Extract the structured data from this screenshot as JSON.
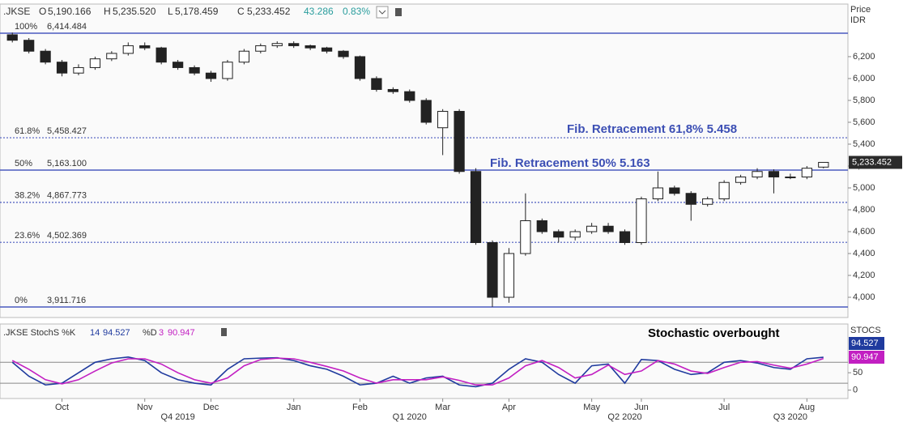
{
  "header": {
    "symbol": ".JKSE",
    "o": "O",
    "open": "5,190.166",
    "h": "H",
    "high": "5,235.520",
    "l": "L",
    "low": "5,178.459",
    "c": "C",
    "close": "5,233.452",
    "change": "43.286",
    "change_pct": "0.83%",
    "axis_title": "Price",
    "currency": "IDR"
  },
  "chart_data": [
    {
      "type": "candlestick",
      "up_color": "#ffffff",
      "down_color": "#222222",
      "categories": [
        null,
        null,
        null,
        "Oct",
        null,
        null,
        null,
        null,
        "Nov",
        null,
        null,
        null,
        "Dec",
        null,
        null,
        null,
        null,
        "Jan",
        null,
        null,
        null,
        "Feb",
        null,
        null,
        null,
        null,
        "Mar",
        null,
        null,
        null,
        "Apr",
        null,
        null,
        null,
        null,
        "May",
        null,
        null,
        "Jun",
        null,
        null,
        null,
        null,
        "Jul",
        null,
        null,
        null,
        null,
        "Aug",
        null
      ],
      "quarters": [
        null,
        null,
        null,
        null,
        null,
        null,
        null,
        null,
        null,
        null,
        "Q4 2019",
        null,
        null,
        null,
        null,
        null,
        null,
        null,
        null,
        null,
        null,
        null,
        null,
        null,
        "Q1 2020",
        null,
        null,
        null,
        null,
        null,
        null,
        null,
        null,
        null,
        null,
        null,
        null,
        "Q2 2020",
        null,
        null,
        null,
        null,
        null,
        null,
        null,
        null,
        null,
        "Q3 2020",
        null,
        null
      ],
      "series": [
        {
          "name": ".JKSE",
          "open": [
            6400,
            6350,
            6250,
            6150,
            6050,
            6100,
            6180,
            6230,
            6300,
            6280,
            6150,
            6100,
            6050,
            6000,
            6150,
            6250,
            6300,
            6320,
            6300,
            6280,
            6250,
            6200,
            6000,
            5900,
            5880,
            5800,
            5550,
            5700,
            5150,
            4500,
            4000,
            4400,
            4700,
            4600,
            4550,
            4600,
            4650,
            4600,
            4500,
            4900,
            5000,
            4950,
            4850,
            4900,
            5050,
            5100,
            5150,
            5100,
            5100,
            5190.166
          ],
          "high": [
            6420,
            6370,
            6270,
            6170,
            6130,
            6200,
            6250,
            6330,
            6330,
            6290,
            6170,
            6120,
            6070,
            6170,
            6270,
            6320,
            6340,
            6340,
            6310,
            6290,
            6260,
            6210,
            6020,
            5920,
            5900,
            5820,
            5720,
            5720,
            5180,
            4520,
            4450,
            4950,
            4720,
            4620,
            4620,
            4680,
            4680,
            4620,
            4920,
            5150,
            5020,
            4970,
            4920,
            5070,
            5120,
            5180,
            5170,
            5130,
            5200,
            5235.52
          ],
          "low": [
            6330,
            6230,
            6130,
            6020,
            6030,
            6080,
            6160,
            6210,
            6260,
            6130,
            6080,
            6030,
            5970,
            5980,
            6130,
            6230,
            6280,
            6280,
            6260,
            6230,
            6180,
            5980,
            5880,
            5860,
            5780,
            5580,
            5300,
            5130,
            4480,
            3911.716,
            3950,
            4380,
            4580,
            4500,
            4520,
            4580,
            4580,
            4480,
            4480,
            4880,
            4930,
            4700,
            4830,
            4880,
            5030,
            5080,
            4950,
            5080,
            5080,
            5178.459
          ],
          "close": [
            6350,
            6250,
            6150,
            6050,
            6100,
            6180,
            6230,
            6300,
            6280,
            6150,
            6100,
            6050,
            6000,
            6150,
            6250,
            6300,
            6320,
            6300,
            6280,
            6250,
            6200,
            6000,
            5900,
            5880,
            5800,
            5600,
            5700,
            5150,
            4500,
            4000,
            4400,
            4700,
            4600,
            4550,
            4600,
            4650,
            4600,
            4500,
            4900,
            5000,
            4950,
            4850,
            4900,
            5050,
            5100,
            5150,
            5100,
            5100,
            5180,
            5233.452
          ]
        }
      ],
      "last_price": {
        "value": 5233.452,
        "label": "5,233.452"
      },
      "ylim": [
        3815,
        6681
      ],
      "yticks": [
        {
          "value": 4000,
          "label": "4,000"
        },
        {
          "value": 4200,
          "label": "4,200"
        },
        {
          "value": 4400,
          "label": "4,400"
        },
        {
          "value": 4600,
          "label": "4,600"
        },
        {
          "value": 4800,
          "label": "4,800"
        },
        {
          "value": 5000,
          "label": "5,000"
        },
        {
          "value": 5200,
          "label": "5,200"
        },
        {
          "value": 5400,
          "label": "5,400"
        },
        {
          "value": 5600,
          "label": "5,600"
        },
        {
          "value": 5800,
          "label": "5,800"
        },
        {
          "value": 6000,
          "label": "6,000"
        },
        {
          "value": 6200,
          "label": "6,200"
        }
      ],
      "fib_color": "#4b5bbf",
      "fib_levels": [
        {
          "pct": "100%",
          "value": 6414.484,
          "label": "6,414.484",
          "dotted": false
        },
        {
          "pct": "61.8%",
          "value": 5458.427,
          "label": "5,458.427",
          "dotted": true
        },
        {
          "pct": "50%",
          "value": 5163.1,
          "label": "5,163.100",
          "dotted": false
        },
        {
          "pct": "38.2%",
          "value": 4867.773,
          "label": "4,867.773",
          "dotted": true
        },
        {
          "pct": "23.6%",
          "value": 4502.369,
          "label": "4,502.369",
          "dotted": true
        },
        {
          "pct": "0%",
          "value": 3911.716,
          "label": "3,911.716",
          "dotted": false
        }
      ],
      "annotations": [
        "Fib. Retracement 61,8%  5.458",
        "Fib. Retracement 50%  5.163"
      ]
    },
    {
      "type": "line",
      "title": ".JKSE StochS %K",
      "k_period": 14,
      "d_label": "%D",
      "d_period": 3,
      "axis_title": "STOCS",
      "annotation": "Stochastic overbought",
      "series": [
        {
          "name": "%K",
          "color": "#1f3a9e",
          "values": [
            80,
            40,
            15,
            20,
            50,
            80,
            90,
            95,
            85,
            50,
            30,
            20,
            15,
            60,
            90,
            92,
            93,
            85,
            70,
            60,
            40,
            15,
            20,
            40,
            20,
            35,
            40,
            15,
            10,
            20,
            60,
            90,
            80,
            45,
            20,
            70,
            75,
            20,
            88,
            85,
            60,
            45,
            50,
            80,
            85,
            78,
            65,
            60,
            90,
            94.527
          ]
        },
        {
          "name": "%D",
          "color": "#c21fc2",
          "values": [
            85,
            60,
            30,
            18,
            30,
            55,
            78,
            90,
            90,
            75,
            50,
            30,
            20,
            35,
            70,
            88,
            92,
            90,
            80,
            68,
            55,
            35,
            20,
            30,
            30,
            30,
            38,
            28,
            15,
            15,
            35,
            70,
            85,
            65,
            35,
            45,
            72,
            45,
            55,
            85,
            75,
            55,
            48,
            65,
            80,
            82,
            72,
            63,
            75,
            90.947
          ]
        }
      ],
      "ylim": [
        -24,
        190
      ],
      "yticks": [
        0,
        50
      ],
      "ref_lines": [
        20,
        80
      ]
    }
  ]
}
